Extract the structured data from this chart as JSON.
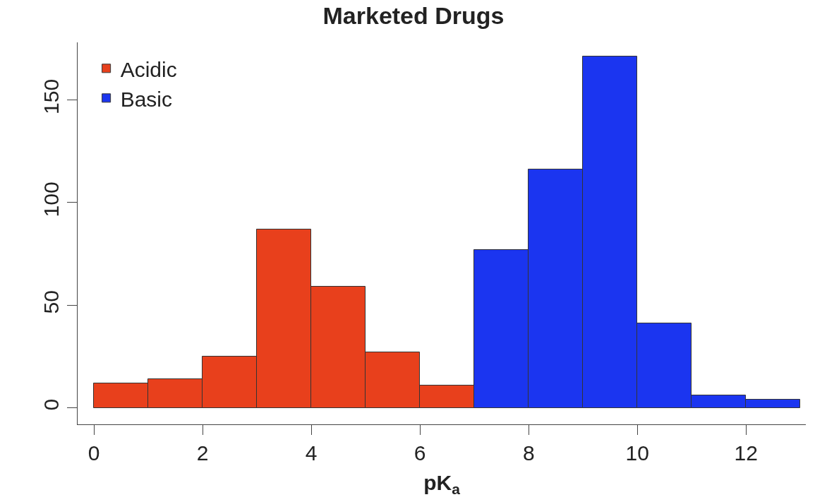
{
  "chart_data": {
    "type": "histogram",
    "title": "Marketed Drugs",
    "xlabel": "pK$_{a}$",
    "bins": [
      0,
      1,
      2,
      3,
      4,
      5,
      6,
      7,
      8,
      9,
      10,
      11,
      12,
      13
    ],
    "series": [
      {
        "name": "Acidic",
        "color": "#e8401c",
        "values": [
          12,
          14,
          25,
          87,
          59,
          27,
          11,
          null,
          null,
          null,
          null,
          null,
          null
        ]
      },
      {
        "name": "Basic",
        "color": "#1b35f0",
        "values": [
          null,
          null,
          null,
          null,
          null,
          null,
          null,
          77,
          116,
          171,
          41,
          6,
          4
        ]
      }
    ],
    "xlim": [
      -0.3,
      13.1
    ],
    "xticks": [
      0,
      2,
      4,
      6,
      8,
      10,
      12
    ],
    "ylim": [
      -8,
      178
    ],
    "yticks": [
      0,
      50,
      100,
      150
    ],
    "legend": "top left"
  }
}
